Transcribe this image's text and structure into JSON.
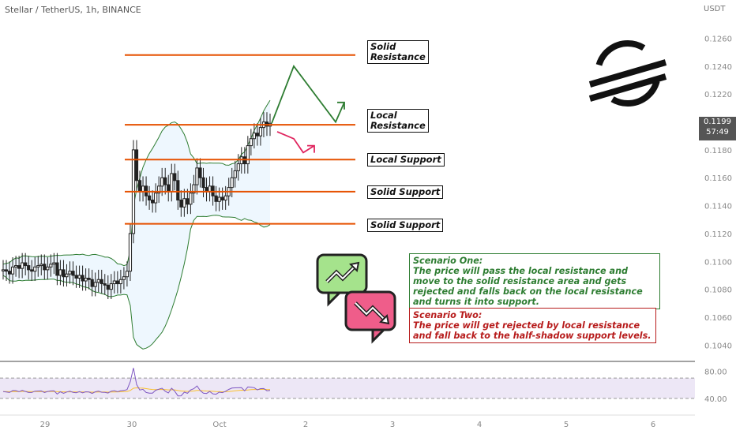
{
  "header": {
    "symbol": "Stellar / TetherUS, 1h, BINANCE",
    "currency": "USDT"
  },
  "price_badge": {
    "price": "0.1199",
    "countdown": "57:49"
  },
  "levels": [
    {
      "key": "solid_resistance",
      "lines": [
        "Solid",
        "Resistance"
      ],
      "price": 0.1248
    },
    {
      "key": "local_resistance",
      "lines": [
        "Local",
        "Resistance"
      ],
      "price": 0.1198
    },
    {
      "key": "local_support",
      "lines": [
        "Local Support"
      ],
      "price": 0.1173
    },
    {
      "key": "solid_support_1",
      "lines": [
        "Solid Support"
      ],
      "price": 0.115
    },
    {
      "key": "solid_support_2",
      "lines": [
        "Solid Support"
      ],
      "price": 0.1127
    }
  ],
  "scenarios": {
    "one": {
      "title": "Scenario One:",
      "text": "The price will pass the local resistance and move to the solid resistance area and gets rejected and falls back on the local resistance and turns it into support."
    },
    "two": {
      "title": "Scenario Two:",
      "text": "The price will get rejected by local resistance and fall back to the half-shadow support levels."
    }
  },
  "icons": {
    "logo": "stellar-logo",
    "up_bubble": "trend-up-bubble-icon",
    "down_bubble": "trend-down-bubble-icon"
  },
  "colors": {
    "level_line": "#e65100",
    "bull_path": "#2e7d32",
    "bear_path": "#e0245e",
    "bands": "#2e7d32",
    "band_fill": "#e3f2fd",
    "rsi": "#7e57c2",
    "rsi_ma": "#fbc02d"
  },
  "chart_data": {
    "type": "line",
    "title": "Stellar / TetherUS, 1h, BINANCE",
    "x_ticks": [
      "29",
      "30",
      "Oct",
      "2",
      "3",
      "4",
      "5",
      "6"
    ],
    "y_ticks": [
      "0.1260",
      "0.1240",
      "0.1220",
      "0.1180",
      "0.1160",
      "0.1140",
      "0.1120",
      "0.1100",
      "0.1080",
      "0.1060",
      "0.1040"
    ],
    "ylim": [
      0.103,
      0.1275
    ],
    "close_series": [
      0.1094,
      0.1093,
      0.1091,
      0.1096,
      0.1097,
      0.1095,
      0.1099,
      0.1097,
      0.1094,
      0.1093,
      0.1096,
      0.1097,
      0.1098,
      0.1094,
      0.1096,
      0.1098,
      0.1099,
      0.109,
      0.1094,
      0.1089,
      0.1091,
      0.1093,
      0.109,
      0.1088,
      0.109,
      0.1086,
      0.1088,
      0.1087,
      0.1082,
      0.1085,
      0.1087,
      0.1084,
      0.1083,
      0.108,
      0.1084,
      0.1086,
      0.1084,
      0.1087,
      0.1089,
      0.1093,
      0.112,
      0.118,
      0.1158,
      0.115,
      0.1154,
      0.1147,
      0.1144,
      0.1142,
      0.1149,
      0.1154,
      0.116,
      0.1155,
      0.115,
      0.1163,
      0.1158,
      0.1144,
      0.1139,
      0.1145,
      0.1141,
      0.1149,
      0.1155,
      0.1167,
      0.116,
      0.1153,
      0.115,
      0.1154,
      0.1147,
      0.1143,
      0.1146,
      0.1144,
      0.1147,
      0.1153,
      0.116,
      0.1165,
      0.117,
      0.1175,
      0.117,
      0.1183,
      0.1188,
      0.1192,
      0.119,
      0.1196,
      0.12,
      0.1197,
      0.1199
    ],
    "bull_path": [
      [
        0.1199,
        0.124
      ],
      [
        0.124,
        0.12
      ],
      [
        0.12,
        0.1214
      ]
    ],
    "bear_path": [
      [
        0.1193,
        0.1188
      ],
      [
        0.1188,
        0.1178
      ],
      [
        0.1178,
        0.1183
      ]
    ],
    "rsi_ticks": [
      "80.00",
      "40.00"
    ],
    "rsi_band": [
      40,
      70
    ]
  }
}
